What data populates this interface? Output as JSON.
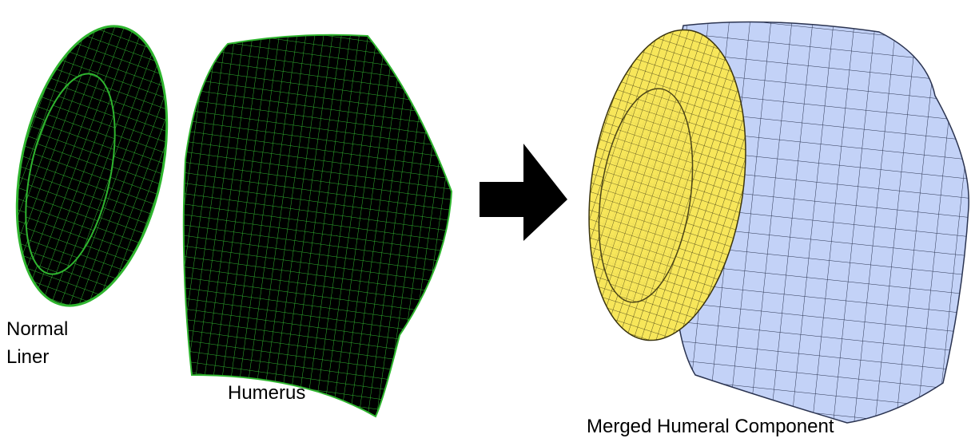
{
  "labels": {
    "liner": [
      "Normal",
      "Liner"
    ],
    "humerus": "Humerus",
    "merged": "Merged Humeral Component"
  }
}
